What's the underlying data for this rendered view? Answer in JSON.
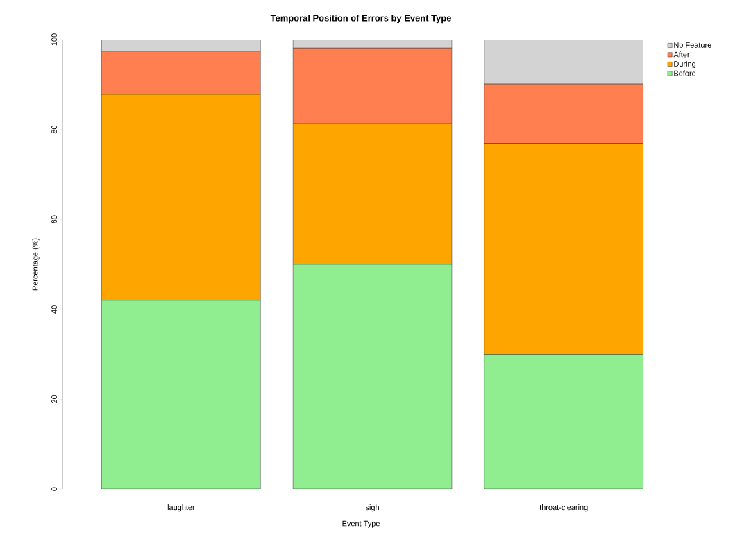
{
  "chart_data": {
    "type": "bar",
    "stacked": true,
    "title": "Temporal Position of Errors by Event Type",
    "xlabel": "Event Type",
    "ylabel": "Percentage (%)",
    "categories": [
      "laughter",
      "sigh",
      "throat-clearing"
    ],
    "series": [
      {
        "name": "Before",
        "color": "#90ee90",
        "values": [
          42,
          50,
          30
        ]
      },
      {
        "name": "During",
        "color": "#ffa500",
        "values": [
          45.8,
          31.3,
          46.9
        ]
      },
      {
        "name": "After",
        "color": "#ff7f50",
        "values": [
          9.6,
          16.8,
          13.2
        ]
      },
      {
        "name": "No Feature",
        "color": "#d3d3d3",
        "values": [
          2.6,
          1.9,
          9.9
        ]
      }
    ],
    "ylim": [
      0,
      100
    ],
    "yticks": [
      0,
      20,
      40,
      60,
      80,
      100
    ],
    "legend": "top right"
  }
}
